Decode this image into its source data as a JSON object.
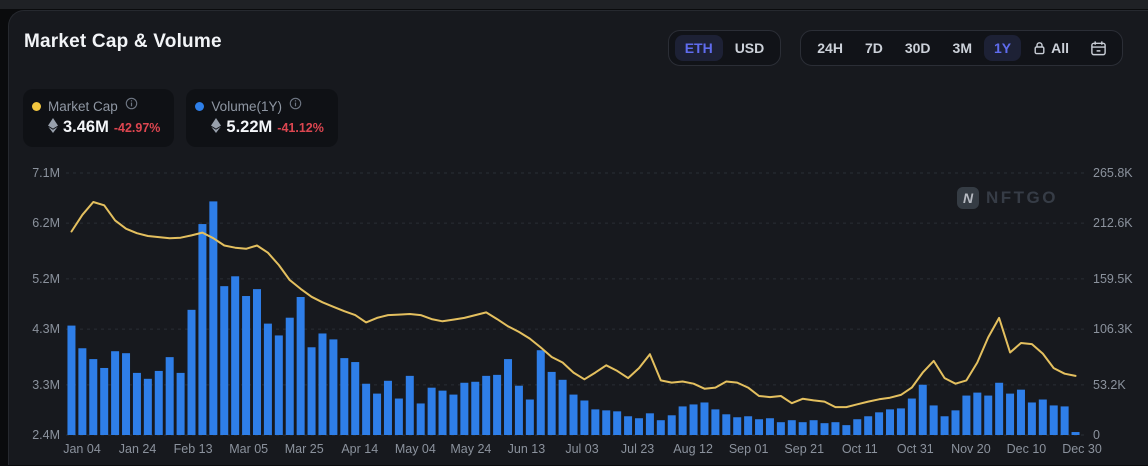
{
  "header": {
    "title": "Market Cap & Volume"
  },
  "controls": {
    "currency": {
      "options": [
        "ETH",
        "USD"
      ],
      "selected": "ETH"
    },
    "ranges": {
      "options": [
        "24H",
        "7D",
        "30D",
        "3M",
        "1Y"
      ],
      "selected": "1Y",
      "all_label": "All"
    }
  },
  "legend": {
    "market_cap": {
      "label": "Market Cap",
      "value": "3.46M",
      "change": "-42.97%",
      "color": "#f2c63f"
    },
    "volume": {
      "label": "Volume(1Y)",
      "value": "5.22M",
      "change": "-41.12%",
      "color": "#2e7fe8"
    }
  },
  "watermark": {
    "logo_letter": "N",
    "text": "NFTGO"
  },
  "colors": {
    "bar": "#2e7ee8",
    "line": "#e4c05f",
    "grid": "#2a2e36",
    "axis_text": "#8b929d",
    "negative": "#dd4650",
    "accent_selected": "#5f6cee"
  },
  "chart_data": {
    "type": "bar+line combo",
    "title": "Market Cap & Volume",
    "grid": "dashed horizontal",
    "legend_position": "top-left",
    "x_labels": [
      "Jan 04",
      "Jan 24",
      "Feb 13",
      "Mar 05",
      "Mar 25",
      "Apr 14",
      "May 04",
      "May 24",
      "Jun 13",
      "Jul 03",
      "Jul 23",
      "Aug 12",
      "Sep 01",
      "Sep 21",
      "Oct 11",
      "Oct 31",
      "Nov 20",
      "Dec 10",
      "Dec 30"
    ],
    "left_axis": {
      "ticks": [
        "7.1M",
        "6.2M",
        "5.2M",
        "4.3M",
        "3.3M",
        "2.4M"
      ],
      "tick_values": [
        7.1,
        6.2,
        5.2,
        4.3,
        3.3,
        2.4
      ],
      "min": 2.4,
      "max": 7.1,
      "unit": "M",
      "series": "Market Cap"
    },
    "right_axis": {
      "ticks": [
        "265.8K",
        "212.6K",
        "159.5K",
        "106.3K",
        "53.2K",
        "0"
      ],
      "tick_values": [
        265.8,
        212.6,
        159.5,
        106.3,
        53.2,
        0
      ],
      "min": 0,
      "max": 265.8,
      "unit": "K",
      "series": "Volume"
    },
    "series": [
      {
        "name": "Market Cap",
        "type": "line",
        "axis": "left",
        "unit": "M ETH",
        "color": "#e4c05f",
        "values": [
          6.05,
          6.35,
          6.58,
          6.52,
          6.25,
          6.1,
          6.02,
          5.97,
          5.95,
          5.93,
          5.94,
          5.98,
          6.03,
          5.93,
          5.8,
          5.76,
          5.74,
          5.8,
          5.67,
          5.45,
          5.18,
          5.02,
          4.88,
          4.78,
          4.7,
          4.62,
          4.55,
          4.42,
          4.5,
          4.55,
          4.56,
          4.57,
          4.55,
          4.48,
          4.44,
          4.47,
          4.5,
          4.55,
          4.6,
          4.48,
          4.35,
          4.25,
          4.13,
          3.97,
          3.8,
          3.7,
          3.52,
          3.4,
          3.52,
          3.65,
          3.55,
          3.42,
          3.6,
          3.85,
          3.38,
          3.34,
          3.36,
          3.32,
          3.23,
          3.25,
          3.36,
          3.34,
          3.25,
          3.1,
          3.08,
          3.1,
          2.97,
          3.05,
          3.02,
          3.0,
          2.9,
          2.9,
          2.95,
          3.0,
          3.04,
          3.07,
          3.12,
          3.25,
          3.52,
          3.73,
          3.42,
          3.32,
          3.38,
          3.7,
          4.15,
          4.5,
          3.88,
          4.05,
          4.03,
          3.86,
          3.6,
          3.5,
          3.46
        ]
      },
      {
        "name": "Volume",
        "type": "bar",
        "axis": "right",
        "unit": "K ETH",
        "color": "#2e7ee8",
        "values": [
          111,
          88,
          77,
          68,
          85,
          83,
          63,
          57,
          65,
          79,
          63,
          127,
          214,
          237,
          151,
          161,
          141,
          148,
          113,
          101,
          119,
          140,
          89,
          103,
          97,
          78,
          74,
          52,
          42,
          55,
          37,
          60,
          32,
          48,
          45,
          41,
          53,
          54,
          60,
          61,
          77,
          50,
          36,
          86,
          64,
          56,
          41,
          35,
          26,
          25,
          24,
          19,
          17,
          22,
          15,
          20,
          29,
          31,
          33,
          26,
          21,
          18,
          19,
          16,
          17,
          13,
          15,
          13,
          15,
          12,
          13,
          10,
          16,
          19,
          23,
          26,
          27,
          37,
          51,
          30,
          19,
          25,
          40,
          43,
          40,
          53,
          42,
          46,
          33,
          36,
          30,
          29,
          3
        ]
      }
    ]
  }
}
